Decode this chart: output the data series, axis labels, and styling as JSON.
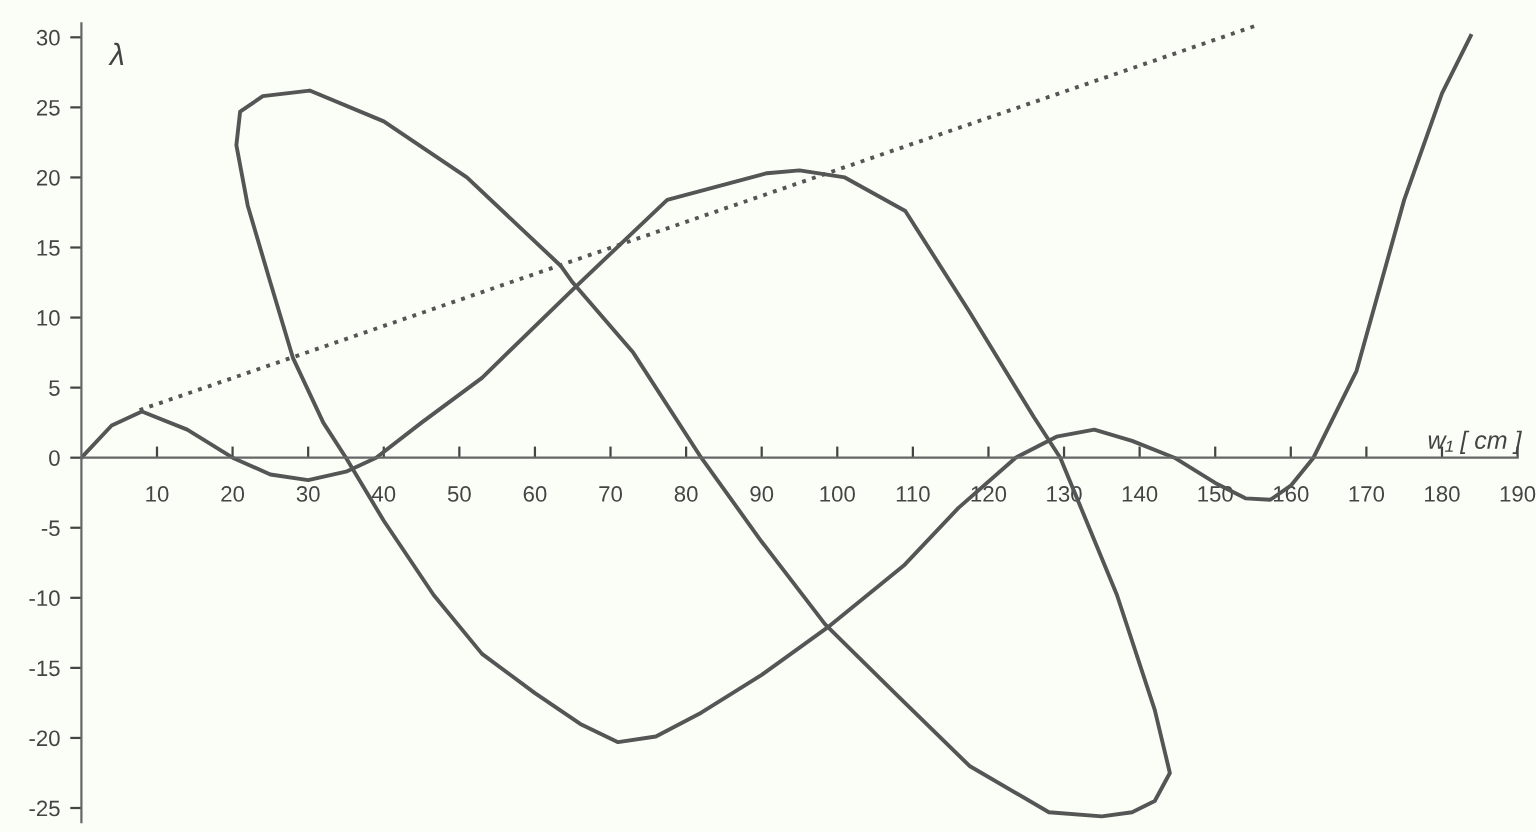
{
  "chart_data": {
    "type": "line",
    "xlabel": "w₁ [ cm ]",
    "ylabel": "λ",
    "xlim": [
      0,
      190
    ],
    "ylim": [
      -26,
      31
    ],
    "xticks": [
      10,
      20,
      30,
      40,
      50,
      60,
      70,
      80,
      90,
      100,
      110,
      120,
      130,
      140,
      150,
      160,
      170,
      180,
      190
    ],
    "yticks": [
      -25,
      -20,
      -15,
      -10,
      -5,
      0,
      5,
      10,
      15,
      20,
      25,
      30
    ],
    "grid": false,
    "legend": false,
    "series": [
      {
        "color": "#555555",
        "line_style": "solid",
        "x": [
          0,
          4,
          8,
          14,
          20,
          25,
          30,
          35,
          39,
          45,
          53,
          65,
          77.5,
          90.7,
          95,
          101,
          109,
          117.5,
          126,
          129.5,
          137,
          142,
          144,
          142,
          139,
          135,
          128,
          117.5,
          108,
          98.4,
          90,
          82,
          73,
          65,
          63.4,
          51,
          40,
          30.2,
          24,
          21,
          20.5,
          22,
          25,
          28,
          32,
          35,
          40,
          46.6,
          53,
          60,
          66,
          71,
          76,
          82,
          90,
          99,
          108.8,
          116,
          123.6,
          129,
          134,
          139,
          144.6,
          150,
          154,
          157.3,
          160,
          163,
          168.7,
          175,
          180,
          183.8
        ],
        "values": [
          0,
          2.3,
          3.3,
          2,
          0,
          -1.2,
          -1.6,
          -1,
          0,
          2.5,
          5.7,
          12,
          18.4,
          20.3,
          20.5,
          20,
          17.6,
          10.4,
          2.9,
          0,
          -9.8,
          -18,
          -22.5,
          -24.5,
          -25.3,
          -25.6,
          -25.3,
          -22,
          -17,
          -11.9,
          -6,
          0,
          7.5,
          12.5,
          13.7,
          20,
          24,
          26.2,
          25.8,
          24.7,
          22.3,
          18,
          12.5,
          7.1,
          2.5,
          0,
          -4.5,
          -9.8,
          -14,
          -16.8,
          -19,
          -20.3,
          -19.9,
          -18.2,
          -15.5,
          -12,
          -7.7,
          -3.6,
          0,
          1.5,
          2,
          1.2,
          0,
          -1.8,
          -2.9,
          -3,
          -2,
          0,
          6.2,
          18.4,
          26,
          30.1
        ]
      },
      {
        "color": "#555555",
        "line_style": "dotted",
        "x": [
          7.7,
          155.2
        ],
        "values": [
          3.4,
          30.8
        ]
      }
    ]
  }
}
